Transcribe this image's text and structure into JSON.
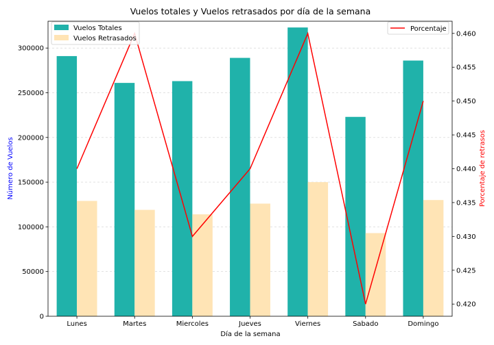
{
  "chart_data": {
    "type": "bar",
    "title": "Vuelos totales y Vuelos retrasados por día de la semana",
    "xlabel": "Día de la semana",
    "ylabel": "Número de Vuelos",
    "y2label": "Porcentaje de retrasos",
    "categories": [
      "Lunes",
      "Martes",
      "Miercoles",
      "Jueves",
      "Viernes",
      "Sabado",
      "Domingo"
    ],
    "ylim": [
      0,
      330000
    ],
    "yticks": [
      0,
      50000,
      100000,
      150000,
      200000,
      250000,
      300000
    ],
    "y2lim": [
      0.4182,
      0.4618
    ],
    "y2ticks": [
      0.42,
      0.425,
      0.43,
      0.435,
      0.44,
      0.445,
      0.45,
      0.455,
      0.46
    ],
    "series": [
      {
        "name": "Vuelos Totales",
        "kind": "bar",
        "color": "#20b2aa",
        "values": [
          291000,
          261000,
          263000,
          289000,
          323000,
          223000,
          286000
        ]
      },
      {
        "name": "Vuelos Retrasados",
        "kind": "bar",
        "color": "#ffe4b5",
        "values": [
          129000,
          119000,
          114000,
          126000,
          150000,
          93000,
          130000
        ]
      },
      {
        "name": "Porcentaje",
        "kind": "line",
        "axis": "right",
        "color": "#ff0000",
        "values": [
          0.44,
          0.46,
          0.43,
          0.44,
          0.46,
          0.42,
          0.45
        ]
      }
    ],
    "legend_left": "upper-left",
    "legend_right": "upper-right",
    "grid": "horizontal-dashed",
    "ylabel_color": "#0000ff",
    "y2label_color": "#ff0000"
  }
}
